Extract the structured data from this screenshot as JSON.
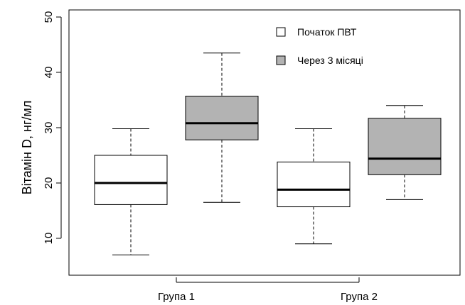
{
  "chart_data": {
    "type": "box",
    "title": "",
    "xlabel": "",
    "ylabel": "Вітамін D, нг/мл",
    "ylim": [
      5,
      50
    ],
    "yticks": [
      10,
      20,
      30,
      40,
      50
    ],
    "categories": [
      "Група 1",
      "Група 2"
    ],
    "grid": false,
    "legend_position": "top-right",
    "series": [
      {
        "name": "Початок ПВТ",
        "color": "#ffffff",
        "boxes": [
          {
            "category": "Група 1",
            "min": 7,
            "q1": 16.1,
            "median": 20,
            "q3": 25,
            "max": 29.8
          },
          {
            "category": "Група 2",
            "min": 9,
            "q1": 15.7,
            "median": 18.8,
            "q3": 23.8,
            "max": 29.8
          }
        ]
      },
      {
        "name": "Через 3 місяці",
        "color": "#b3b3b3",
        "boxes": [
          {
            "category": "Група 1",
            "min": 16.5,
            "q1": 27.8,
            "median": 30.8,
            "q3": 35.7,
            "max": 43.5
          },
          {
            "category": "Група 2",
            "min": 17,
            "q1": 21.5,
            "median": 24.4,
            "q3": 31.7,
            "max": 34
          }
        ]
      }
    ]
  }
}
